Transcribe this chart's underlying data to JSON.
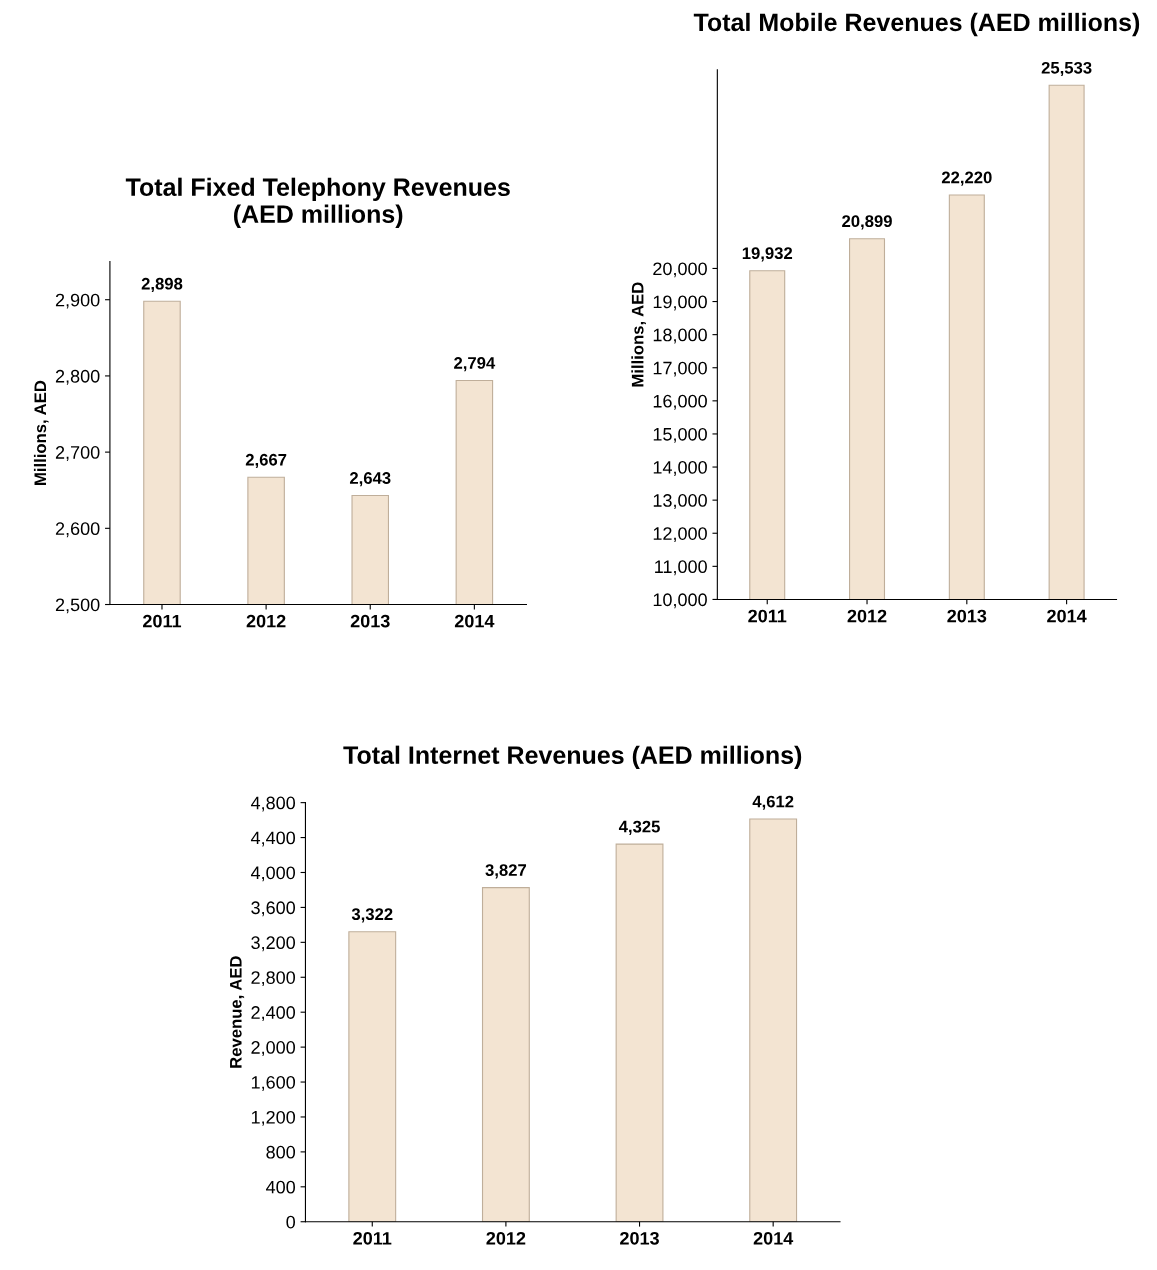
{
  "chart_data": [
    {
      "type": "bar",
      "title": "Total Fixed Telephony Revenues\n(AED millions)",
      "ylabel": "Millions, AED",
      "categories": [
        "2011",
        "2012",
        "2013",
        "2014"
      ],
      "values": [
        2898,
        2667,
        2643,
        2794
      ],
      "value_labels": [
        "2,898",
        "2,667",
        "2,643",
        "2,794"
      ],
      "color": "#f3e4d2",
      "ylim": [
        2500,
        2950
      ],
      "yticks": [
        {
          "value": 2500,
          "label": "2,500"
        },
        {
          "value": 2600,
          "label": "2,600"
        },
        {
          "value": 2700,
          "label": "2,700"
        },
        {
          "value": 2800,
          "label": "2,800"
        },
        {
          "value": 2900,
          "label": "2,900"
        }
      ],
      "grid": false
    },
    {
      "type": "bar",
      "title": "Total Mobile Revenues (AED millions)",
      "ylabel": "Millions, AED",
      "categories": [
        "2011",
        "2012",
        "2013",
        "2014"
      ],
      "values": [
        19932,
        20899,
        22220,
        25533
      ],
      "value_labels": [
        "19,932",
        "20,899",
        "22,220",
        "25,533"
      ],
      "color": "#f3e4d2",
      "ylim": [
        10000,
        26000
      ],
      "yticks": [
        {
          "value": 10000,
          "label": "10,000"
        },
        {
          "value": 11000,
          "label": "11,000"
        },
        {
          "value": 12000,
          "label": "12,000"
        },
        {
          "value": 13000,
          "label": "13,000"
        },
        {
          "value": 14000,
          "label": "14,000"
        },
        {
          "value": 15000,
          "label": "15,000"
        },
        {
          "value": 16000,
          "label": "16,000"
        },
        {
          "value": 17000,
          "label": "17,000"
        },
        {
          "value": 18000,
          "label": "18,000"
        },
        {
          "value": 19000,
          "label": "19,000"
        },
        {
          "value": 20000,
          "label": "20,000"
        }
      ],
      "grid": false
    },
    {
      "type": "bar",
      "title": "Total Internet Revenues (AED millions)",
      "ylabel": "Revenue, AED",
      "categories": [
        "2011",
        "2012",
        "2013",
        "2014"
      ],
      "values": [
        3322,
        3827,
        4325,
        4612
      ],
      "value_labels": [
        "3,322",
        "3,827",
        "4,325",
        "4,612"
      ],
      "color": "#f3e4d2",
      "ylim": [
        0,
        4800
      ],
      "yticks": [
        0,
        400,
        800,
        {
          "value": 1200,
          "label": "1,200"
        },
        {
          "value": 1600,
          "label": "1,600"
        },
        {
          "value": 2000,
          "label": "2,000"
        },
        {
          "value": 2400,
          "label": "2,400"
        },
        {
          "value": 2800,
          "label": "2,800"
        },
        {
          "value": 3200,
          "label": "3,200"
        },
        {
          "value": 3600,
          "label": "3,600"
        },
        {
          "value": 4000,
          "label": "4,000"
        },
        {
          "value": 4400,
          "label": "4,400"
        },
        {
          "value": 4800,
          "label": "4,800"
        }
      ],
      "grid": false
    }
  ]
}
